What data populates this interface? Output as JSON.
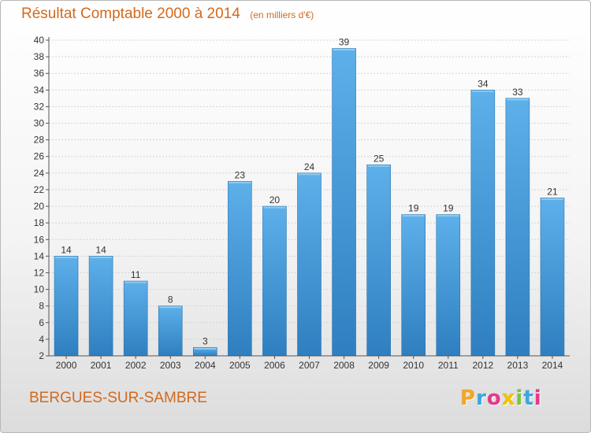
{
  "chart_data": {
    "type": "bar",
    "title": "Résultat Comptable 2000 à 2014",
    "subtitle": "(en milliers d'€)",
    "categories": [
      "2000",
      "2001",
      "2002",
      "2003",
      "2004",
      "2005",
      "2006",
      "2007",
      "2008",
      "2009",
      "2010",
      "2011",
      "2012",
      "2013",
      "2014"
    ],
    "values": [
      14,
      14,
      11,
      8,
      3,
      23,
      20,
      24,
      39,
      25,
      19,
      19,
      34,
      33,
      21
    ],
    "ylim": [
      2,
      40
    ],
    "yticks": [
      2,
      4,
      6,
      8,
      10,
      12,
      14,
      16,
      18,
      20,
      22,
      24,
      26,
      28,
      30,
      32,
      34,
      36,
      38,
      40
    ],
    "grid": true,
    "bar_color": "#4a9fdc",
    "title_color": "#d2691e"
  },
  "footer": {
    "place_name": "BERGUES-SUR-SAMBRE",
    "logo_letters": [
      {
        "ch": "P",
        "color": "#f5a623"
      },
      {
        "ch": "r",
        "color": "#3aa7e0"
      },
      {
        "ch": "o",
        "color": "#e8388a"
      },
      {
        "ch": "x",
        "color": "#f2c200"
      },
      {
        "ch": "i",
        "color": "#7dc242"
      },
      {
        "ch": "t",
        "color": "#3aa7e0"
      },
      {
        "ch": "i",
        "color": "#e8388a"
      }
    ]
  }
}
